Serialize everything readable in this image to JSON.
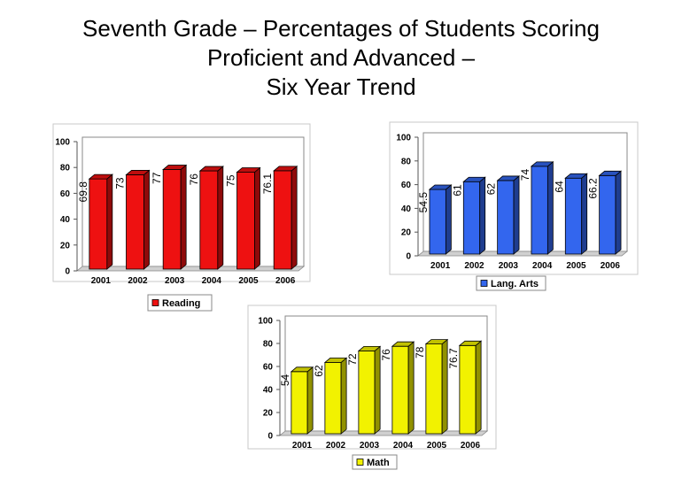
{
  "title": {
    "line1": "Seventh Grade – Percentages of  Students Scoring",
    "line2": "Proficient and Advanced –",
    "line3": "Six Year Trend"
  },
  "chart_data": [
    {
      "type": "bar",
      "categories": [
        "2001",
        "2002",
        "2003",
        "2004",
        "2005",
        "2006"
      ],
      "series": [
        {
          "name": "Reading",
          "values": [
            69.8,
            73,
            77,
            76,
            75,
            76.1
          ],
          "labels": [
            "69.8",
            "73",
            "77",
            "76",
            "75",
            "76.1"
          ]
        }
      ],
      "ylim": [
        0,
        100
      ],
      "yticks": [
        0,
        20,
        40,
        60,
        80,
        100
      ],
      "color": "#ee1111",
      "legend": "bottom",
      "grid": false
    },
    {
      "type": "bar",
      "categories": [
        "2001",
        "2002",
        "2003",
        "2004",
        "2005",
        "2006"
      ],
      "series": [
        {
          "name": "Lang. Arts",
          "values": [
            54.5,
            61,
            62,
            74,
            64,
            66.2
          ],
          "labels": [
            "54.5",
            "61",
            "62",
            "74",
            "64",
            "66.2"
          ]
        }
      ],
      "ylim": [
        0,
        100
      ],
      "yticks": [
        0,
        20,
        40,
        60,
        80,
        100
      ],
      "color": "#3366ee",
      "legend": "bottom",
      "grid": false
    },
    {
      "type": "bar",
      "categories": [
        "2001",
        "2002",
        "2003",
        "2004",
        "2005",
        "2006"
      ],
      "series": [
        {
          "name": "Math",
          "values": [
            54,
            62,
            72,
            76,
            78,
            76.7
          ],
          "labels": [
            "54",
            "62",
            "72",
            "76",
            "78",
            "76.7"
          ]
        }
      ],
      "ylim": [
        0,
        100
      ],
      "yticks": [
        0,
        20,
        40,
        60,
        80,
        100
      ],
      "color": "#f2f200",
      "legend": "bottom",
      "grid": false
    }
  ]
}
